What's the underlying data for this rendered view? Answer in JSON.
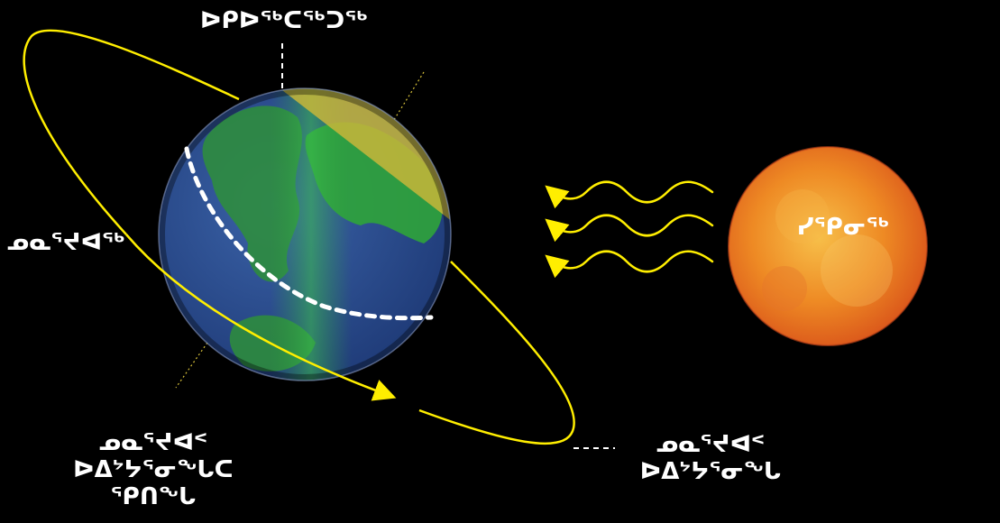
{
  "labels": {
    "north_pole": "ᐅᑭᐅᖅᑕᖅᑐᖅ",
    "moon_left": "ᓄᓇᕐᔪᐊᖅ",
    "sun": "ᓯᕿᓂᖅ",
    "bottom_left_line1": "ᓄᓇᕐᔪᐊᑉ",
    "bottom_left_line2": "ᐅᐃᔾᔭᕐᓂᖓᑕ",
    "bottom_left_line3": "ᕿᑎᖓ",
    "bottom_right_line1": "ᓄᓇᕐᔪᐊᑉ",
    "bottom_right_line2": "ᐅᐃᔾᔭᕐᓂᖓ"
  },
  "colors": {
    "background": "#000000",
    "orbit": "#ffee00",
    "sun": "#e8741a",
    "ocean": "#2b4f8f",
    "land": "#2fa43a",
    "night_shade": "#c8b63a",
    "text": "#ffffff"
  },
  "icons": {
    "earth": "earth-globe-icon",
    "sun": "sun-icon",
    "rays": "wavy-arrow-icon"
  }
}
